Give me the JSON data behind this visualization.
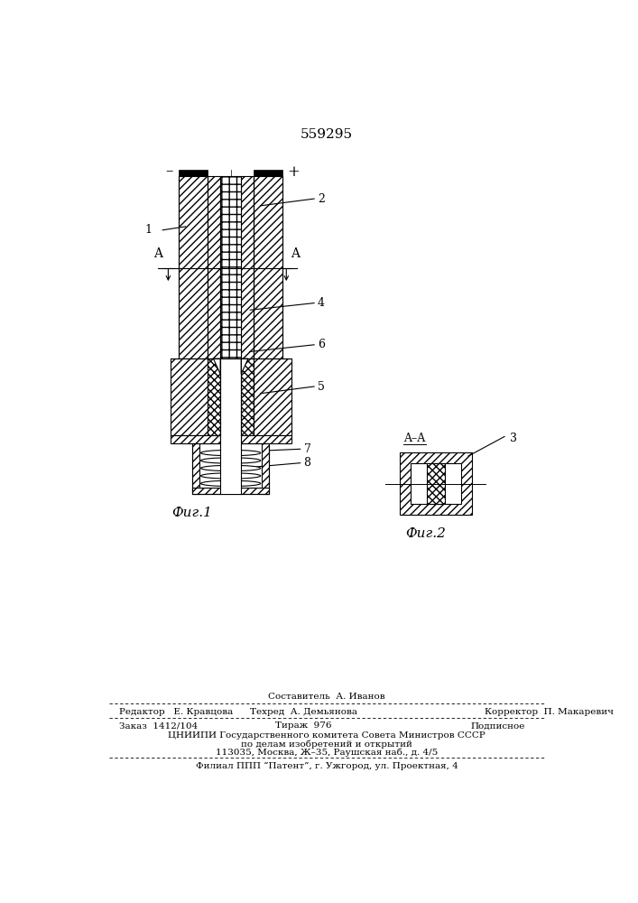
{
  "title": "559295",
  "fig1_label": "Фиг.1",
  "fig2_label": "Фиг.2",
  "fig2_title": "A–A",
  "labels": {
    "minus": "–",
    "plus": "+"
  },
  "footer_line1": "Составитель  А. Иванов",
  "footer_line2_left": "Редактор   Е. Кравцова",
  "footer_line2_mid": "Техред  А. Демьянова",
  "footer_line2_right": "Корректор  П. Макаревич",
  "footer_line3_left": "Заказ  1412/104",
  "footer_line3_mid": "Тираж  976",
  "footer_line3_right": "Подписное",
  "footer_line4": "ЦНИИПИ Государственного комитета Совета Министров СССР",
  "footer_line5": "по делам изобретений и открытий",
  "footer_line6": "113035, Москва, Ж–35, Раушская наб., д. 4/5",
  "footer_line7": "Филиал ППП “Патент”, г. Ужгород, ул. Проектная, 4",
  "bg_color": "#ffffff",
  "line_color": "#000000"
}
